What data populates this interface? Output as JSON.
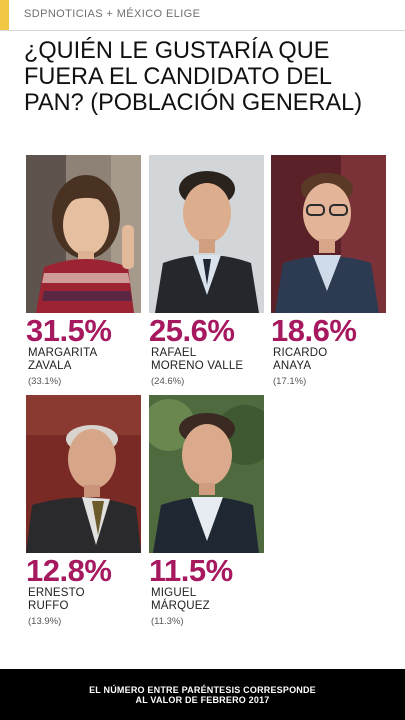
{
  "header": {
    "brand": "SDPNOTICIAS + MÉXICO ELIGE",
    "title": "¿QUIÉN LE GUSTARÍA QUE FUERA EL CANDIDATO DEL PAN? (POBLACIÓN GENERAL)",
    "accent_color": "#f2c744"
  },
  "chart_data": {
    "type": "table",
    "title": "¿QUIÉN LE GUSTARÍA QUE FUERA EL CANDIDATO DEL PAN? (POBLACIÓN GENERAL)",
    "value_color": "#a6195f",
    "candidates": [
      {
        "value": 31.5,
        "value_label": "31.5%",
        "name_lines": [
          "MARGARITA",
          "ZAVALA"
        ],
        "previous_value": 33.1,
        "previous_label": "(33.1%)"
      },
      {
        "value": 25.6,
        "value_label": "25.6%",
        "name_lines": [
          "RAFAEL",
          "MORENO VALLE"
        ],
        "previous_value": 24.6,
        "previous_label": "(24.6%)"
      },
      {
        "value": 18.6,
        "value_label": "18.6%",
        "name_lines": [
          "RICARDO",
          "ANAYA"
        ],
        "previous_value": 17.1,
        "previous_label": "(17.1%)"
      },
      {
        "value": 12.8,
        "value_label": "12.8%",
        "name_lines": [
          "ERNESTO",
          "RUFFO"
        ],
        "previous_value": 13.9,
        "previous_label": "(13.9%)"
      },
      {
        "value": 11.5,
        "value_label": "11.5%",
        "name_lines": [
          "MIGUEL",
          "MÁRQUEZ"
        ],
        "previous_value": 11.3,
        "previous_label": "(11.3%)"
      }
    ]
  },
  "footer": {
    "lines": [
      "EL NÚMERO ENTRE PARÉNTESIS CORRESPONDE",
      "AL VALOR DE FEBRERO 2017"
    ]
  }
}
